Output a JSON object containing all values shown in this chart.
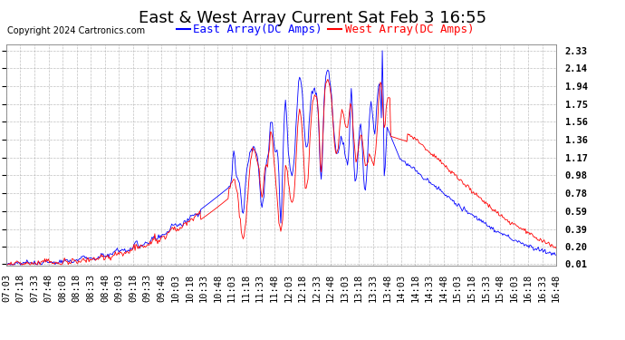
{
  "title": "East & West Array Current Sat Feb 3 16:55",
  "copyright": "Copyright 2024 Cartronics.com",
  "legend_east": "East Array(DC Amps)",
  "legend_west": "West Array(DC Amps)",
  "east_color": "#0000ff",
  "west_color": "#ff0000",
  "bg_color": "#ffffff",
  "plot_bg_color": "#ffffff",
  "grid_color": "#b0b0b0",
  "yticks": [
    0.01,
    0.2,
    0.39,
    0.59,
    0.78,
    0.98,
    1.17,
    1.36,
    1.56,
    1.75,
    1.94,
    2.14,
    2.33
  ],
  "ymin": 0.0,
  "ymax": 2.4,
  "title_fontsize": 13,
  "legend_fontsize": 9,
  "tick_fontsize": 7.5
}
